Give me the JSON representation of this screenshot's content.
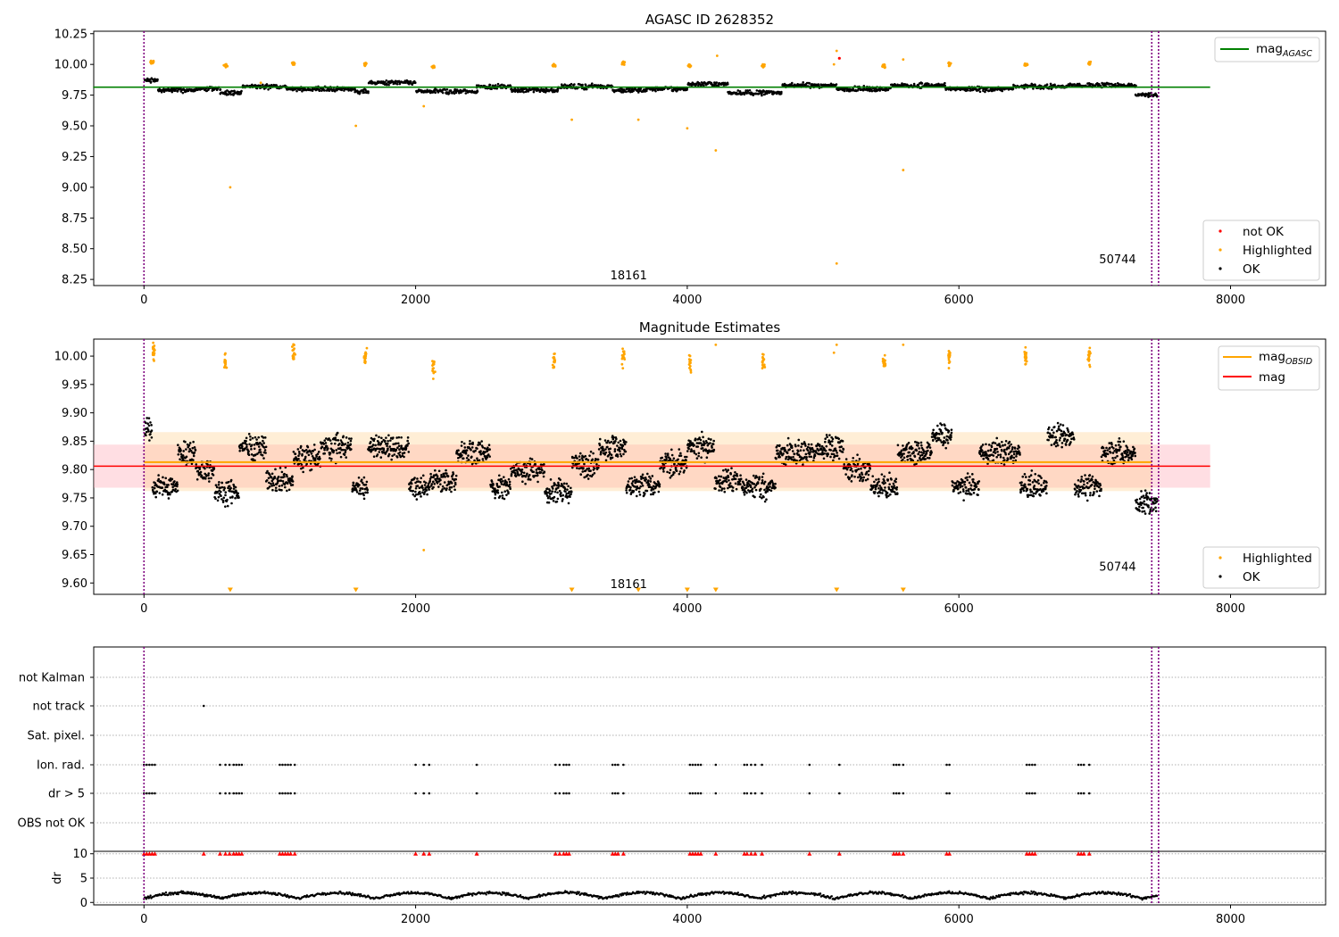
{
  "chart_data": [
    {
      "type": "scatter",
      "title": "AGASC ID 2628352",
      "xlabel": "",
      "ylabel": "",
      "xlim": [
        -370,
        8700
      ],
      "ylim": [
        8.2,
        10.27
      ],
      "xticks": [
        0,
        2000,
        4000,
        6000,
        8000
      ],
      "xtick_labels": [
        "0",
        "2000",
        "4000",
        "6000",
        "8000"
      ],
      "yticks": [
        8.25,
        8.5,
        8.75,
        9.0,
        9.25,
        9.5,
        9.75,
        10.0,
        10.25
      ],
      "ytick_labels": [
        "8.25",
        "8.50",
        "8.75",
        "9.00",
        "9.25",
        "9.50",
        "9.75",
        "10.00",
        "10.25"
      ],
      "grid": false,
      "vlines": [
        0,
        7420,
        7470
      ],
      "vline_color": "#800080",
      "annotations": [
        {
          "text": "18161",
          "x": 3700,
          "y": 8.28
        },
        {
          "text": "50744",
          "x": 7300,
          "y": 8.41
        }
      ],
      "mag_agasc": 9.815,
      "mag_agasc_xrange": [
        0,
        7850
      ],
      "legend": {
        "position": "top-right",
        "entries": [
          {
            "label": "mag",
            "sub": "AGASC",
            "color": "#008000",
            "kind": "line"
          }
        ]
      },
      "scatter_legend": {
        "position": "lower-right",
        "entries": [
          {
            "label": "not OK",
            "color": "#ff0000"
          },
          {
            "label": "Highlighted",
            "color": "#ffa500"
          },
          {
            "label": "OK",
            "color": "#000000"
          }
        ]
      },
      "series": [
        {
          "name": "OK",
          "color": "#000000",
          "segments": [
            [
              0,
              100,
              9.87
            ],
            [
              100,
              380,
              9.79
            ],
            [
              380,
              560,
              9.8
            ],
            [
              560,
              720,
              9.77
            ],
            [
              720,
              1050,
              9.82
            ],
            [
              1050,
              1550,
              9.8
            ],
            [
              1550,
              1650,
              9.78
            ],
            [
              1650,
              2000,
              9.85
            ],
            [
              2000,
              2450,
              9.78
            ],
            [
              2450,
              2700,
              9.82
            ],
            [
              2700,
              3050,
              9.79
            ],
            [
              3050,
              3450,
              9.82
            ],
            [
              3450,
              3700,
              9.79
            ],
            [
              3700,
              4000,
              9.8
            ],
            [
              4000,
              4300,
              9.84
            ],
            [
              4300,
              4700,
              9.77
            ],
            [
              4700,
              5100,
              9.83
            ],
            [
              5100,
              5500,
              9.8
            ],
            [
              5500,
              5900,
              9.83
            ],
            [
              5900,
              6400,
              9.8
            ],
            [
              6400,
              6800,
              9.82
            ],
            [
              6800,
              7300,
              9.83
            ],
            [
              7300,
              7460,
              9.75
            ]
          ]
        },
        {
          "name": "Highlighted",
          "color": "#ffa500",
          "clusters": [
            [
              60,
              10.02
            ],
            [
              600,
              9.99
            ],
            [
              1100,
              10.01
            ],
            [
              1630,
              10.0
            ],
            [
              2130,
              9.98
            ],
            [
              3020,
              9.99
            ],
            [
              3530,
              10.01
            ],
            [
              4020,
              9.99
            ],
            [
              4560,
              9.99
            ],
            [
              5450,
              9.99
            ],
            [
              5930,
              10.0
            ],
            [
              6490,
              10.0
            ],
            [
              6960,
              10.01
            ]
          ],
          "points": [
            [
              635,
              9.0
            ],
            [
              1560,
              9.5
            ],
            [
              2060,
              9.66
            ],
            [
              3150,
              9.55
            ],
            [
              3640,
              9.55
            ],
            [
              4000,
              9.48
            ],
            [
              4210,
              9.3
            ],
            [
              4220,
              10.07
            ],
            [
              5100,
              10.11
            ],
            [
              5100,
              8.38
            ],
            [
              5590,
              9.14
            ],
            [
              5590,
              10.04
            ],
            [
              5080,
              10.0
            ],
            [
              860,
              9.85
            ]
          ]
        },
        {
          "name": "not OK",
          "color": "#ff0000",
          "points": [
            [
              5120,
              10.05
            ]
          ]
        }
      ]
    },
    {
      "type": "scatter",
      "title": "Magnitude Estimates",
      "xlabel": "",
      "ylabel": "",
      "xlim": [
        -370,
        8700
      ],
      "ylim": [
        9.58,
        10.03
      ],
      "xticks": [
        0,
        2000,
        4000,
        6000,
        8000
      ],
      "xtick_labels": [
        "0",
        "2000",
        "4000",
        "6000",
        "8000"
      ],
      "yticks": [
        9.6,
        9.65,
        9.7,
        9.75,
        9.8,
        9.85,
        9.9,
        9.95,
        10.0
      ],
      "ytick_labels": [
        "9.60",
        "9.65",
        "9.70",
        "9.75",
        "9.80",
        "9.85",
        "9.90",
        "9.95",
        "10.00"
      ],
      "grid": false,
      "vlines": [
        0,
        7420,
        7470
      ],
      "annotations": [
        {
          "text": "18161",
          "x": 3700,
          "y": 9.597
        },
        {
          "text": "50744",
          "x": 7300,
          "y": 9.628
        }
      ],
      "mag": 9.806,
      "mag_band": [
        9.768,
        9.844
      ],
      "mag_xrange": [
        -370,
        7850
      ],
      "mag_obsid": 9.813,
      "mag_obsid_band": [
        9.762,
        9.866
      ],
      "mag_obsid_xrange": [
        0,
        7420
      ],
      "legend": {
        "position": "top-right",
        "entries": [
          {
            "label": "mag",
            "sub": "OBSID",
            "color": "#ffa500",
            "kind": "line"
          },
          {
            "label": "mag",
            "sub": "",
            "color": "#ff0000",
            "kind": "line"
          }
        ]
      },
      "scatter_legend": {
        "position": "lower-right",
        "entries": [
          {
            "label": "Highlighted",
            "color": "#ffa500"
          },
          {
            "label": "OK",
            "color": "#000000"
          }
        ]
      },
      "series": [
        {
          "name": "OK",
          "color": "#000000",
          "segments": [
            [
              0,
              60,
              9.87
            ],
            [
              60,
              250,
              9.77
            ],
            [
              250,
              380,
              9.83
            ],
            [
              380,
              520,
              9.8
            ],
            [
              520,
              700,
              9.76
            ],
            [
              700,
              900,
              9.84
            ],
            [
              900,
              1100,
              9.78
            ],
            [
              1100,
              1300,
              9.82
            ],
            [
              1300,
              1530,
              9.84
            ],
            [
              1530,
              1650,
              9.77
            ],
            [
              1650,
              1950,
              9.84
            ],
            [
              1950,
              2100,
              9.77
            ],
            [
              2100,
              2300,
              9.78
            ],
            [
              2300,
              2550,
              9.83
            ],
            [
              2550,
              2700,
              9.77
            ],
            [
              2700,
              2950,
              9.8
            ],
            [
              2950,
              3150,
              9.76
            ],
            [
              3150,
              3350,
              9.81
            ],
            [
              3350,
              3550,
              9.84
            ],
            [
              3550,
              3800,
              9.77
            ],
            [
              3800,
              4000,
              9.81
            ],
            [
              4000,
              4200,
              9.84
            ],
            [
              4200,
              4400,
              9.78
            ],
            [
              4400,
              4650,
              9.77
            ],
            [
              4650,
              4950,
              9.83
            ],
            [
              4950,
              5150,
              9.84
            ],
            [
              5150,
              5350,
              9.8
            ],
            [
              5350,
              5550,
              9.77
            ],
            [
              5550,
              5800,
              9.83
            ],
            [
              5800,
              5950,
              9.86
            ],
            [
              5950,
              6150,
              9.77
            ],
            [
              6150,
              6450,
              9.83
            ],
            [
              6450,
              6650,
              9.77
            ],
            [
              6650,
              6850,
              9.86
            ],
            [
              6850,
              7050,
              9.77
            ],
            [
              7050,
              7300,
              9.83
            ],
            [
              7300,
              7460,
              9.74
            ]
          ]
        },
        {
          "name": "Highlighted",
          "color": "#ffa500",
          "clusters": [
            [
              70,
              10.01
            ],
            [
              600,
              9.99
            ],
            [
              1100,
              10.01
            ],
            [
              1630,
              10.0
            ],
            [
              2130,
              9.98
            ],
            [
              3020,
              9.99
            ],
            [
              3530,
              10.0
            ],
            [
              4020,
              9.99
            ],
            [
              4560,
              9.99
            ],
            [
              5450,
              9.99
            ],
            [
              5930,
              10.0
            ],
            [
              6490,
              10.0
            ],
            [
              6960,
              10.0
            ]
          ],
          "points": [
            [
              2060,
              9.658
            ],
            [
              5080,
              10.006
            ],
            [
              4210,
              10.02
            ],
            [
              5100,
              10.02
            ],
            [
              5590,
              10.02
            ]
          ],
          "down_markers": [
            635,
            1560,
            3150,
            3640,
            4000,
            4210,
            5100,
            5590
          ]
        }
      ]
    },
    {
      "type": "scatter",
      "title": "",
      "xlim": [
        -370,
        8700
      ],
      "xticks": [
        0,
        2000,
        4000,
        6000,
        8000
      ],
      "xtick_labels": [
        "0",
        "2000",
        "4000",
        "6000",
        "8000"
      ],
      "flag_rows": [
        "not Kalman",
        "not track",
        "Sat. pixel.",
        "Ion. rad.",
        "dr > 5",
        "OBS not OK"
      ],
      "flag_points": {
        "not track": [
          440
        ],
        "Ion. rad.": [
          0,
          20,
          40,
          60,
          80,
          560,
          600,
          630,
          660,
          680,
          700,
          720,
          1000,
          1020,
          1040,
          1060,
          1080,
          1110,
          2000,
          2060,
          2100,
          2450,
          3030,
          3060,
          3090,
          3110,
          3130,
          3450,
          3470,
          3490,
          3530,
          4020,
          4040,
          4060,
          4080,
          4100,
          4210,
          4420,
          4440,
          4470,
          4500,
          4550,
          4900,
          5120,
          5520,
          5540,
          5560,
          5590,
          5910,
          5930,
          6500,
          6520,
          6540,
          6560,
          6880,
          6900,
          6920,
          6960
        ],
        "dr > 5": [
          0,
          20,
          40,
          60,
          80,
          560,
          600,
          630,
          660,
          680,
          700,
          720,
          1000,
          1020,
          1040,
          1060,
          1080,
          1110,
          2000,
          2060,
          2100,
          2450,
          3030,
          3060,
          3090,
          3110,
          3130,
          3450,
          3470,
          3490,
          3530,
          4020,
          4040,
          4060,
          4080,
          4100,
          4210,
          4420,
          4440,
          4470,
          4500,
          4550,
          4900,
          5120,
          5520,
          5540,
          5560,
          5590,
          5910,
          5930,
          6500,
          6520,
          6540,
          6560,
          6880,
          6900,
          6920,
          6960
        ]
      },
      "vlines": [
        0,
        7420,
        7470
      ]
    },
    {
      "type": "scatter",
      "title": "",
      "ylabel": "dr",
      "xlim": [
        -370,
        8700
      ],
      "ylim": [
        -0.5,
        10.5
      ],
      "yticks": [
        0,
        5,
        10
      ],
      "ytick_labels": [
        "0",
        "5",
        "10"
      ],
      "xticks": [
        0,
        2000,
        4000,
        6000,
        8000
      ],
      "xtick_labels": [
        "0",
        "2000",
        "4000",
        "6000",
        "8000"
      ],
      "vlines": [
        0,
        7420,
        7470
      ],
      "series": [
        {
          "name": "dr",
          "color": "#000000",
          "baseline": 0.8
        },
        {
          "name": "dr > 5",
          "color": "#ff0000",
          "cap": 10,
          "x": [
            0,
            20,
            40,
            60,
            80,
            440,
            560,
            600,
            630,
            660,
            680,
            700,
            720,
            1000,
            1020,
            1040,
            1060,
            1080,
            1110,
            2000,
            2060,
            2100,
            2450,
            3030,
            3060,
            3090,
            3110,
            3130,
            3450,
            3470,
            3490,
            3530,
            4020,
            4040,
            4060,
            4080,
            4100,
            4210,
            4420,
            4440,
            4470,
            4500,
            4550,
            4900,
            5120,
            5520,
            5540,
            5560,
            5590,
            5910,
            5930,
            6500,
            6520,
            6540,
            6560,
            6880,
            6900,
            6920,
            6960
          ]
        }
      ]
    }
  ]
}
